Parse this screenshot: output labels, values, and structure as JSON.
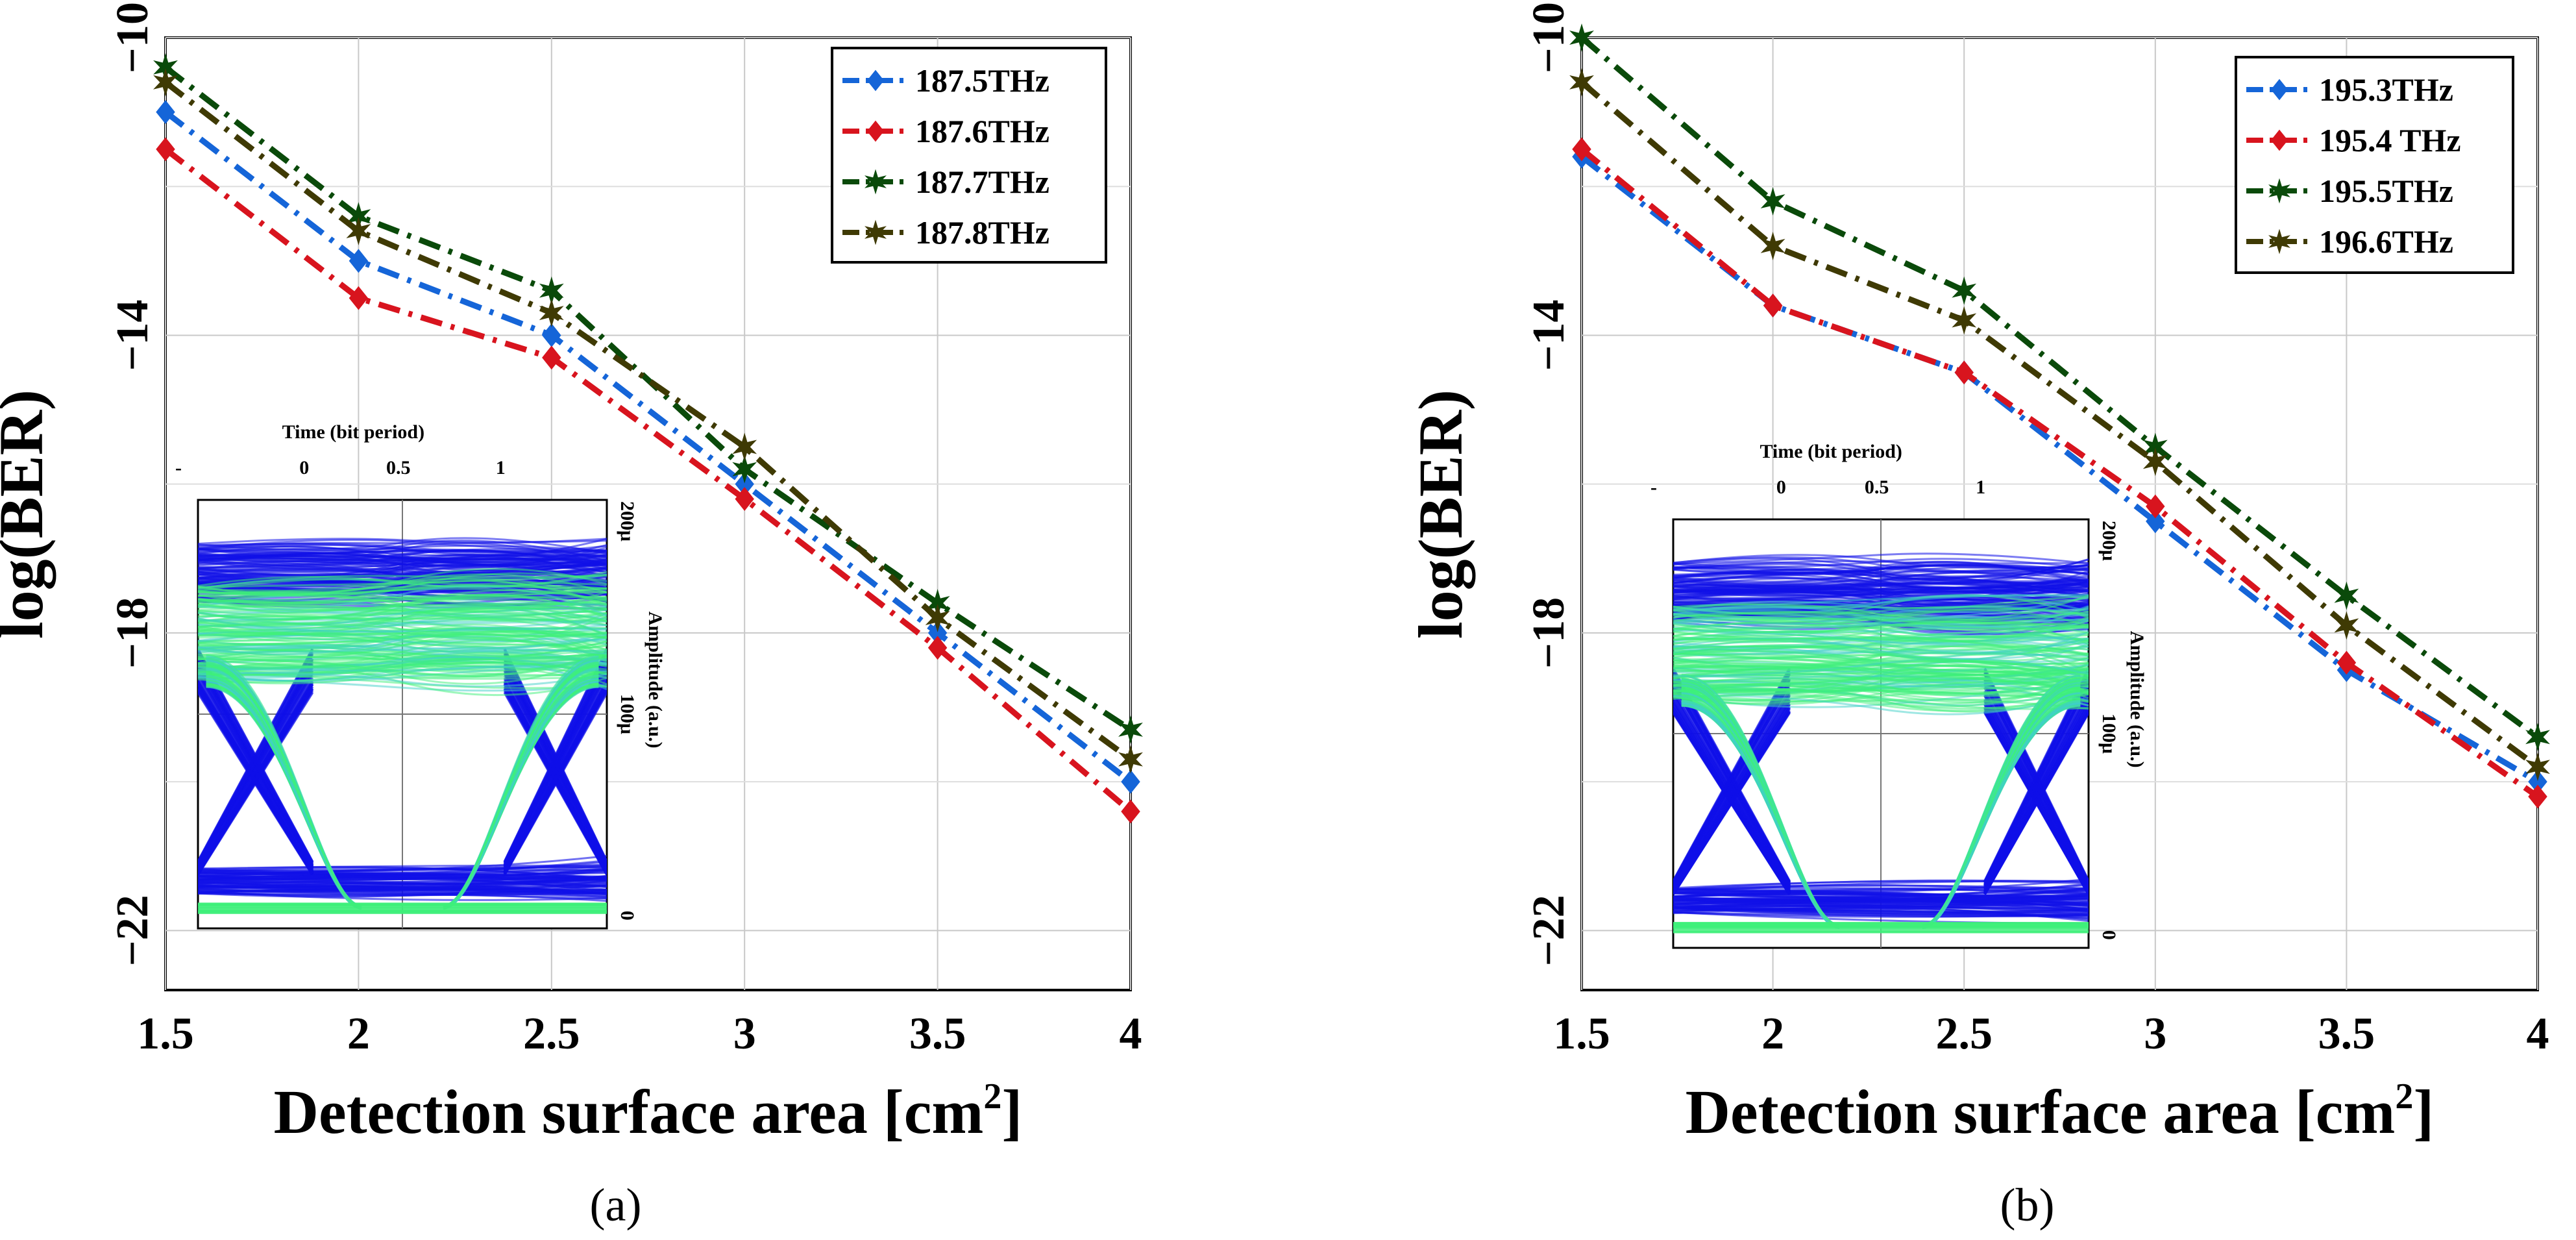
{
  "colors": {
    "blue": "#1565d8",
    "red": "#d8141e",
    "green": "#0a4a0a",
    "olive": "#3f3a04",
    "eye_blue": "#1010e8",
    "eye_green": "#3ef07a",
    "eye_cyan": "#3fd0c8"
  },
  "chart_data": [
    {
      "type": "line",
      "caption": "(a)",
      "title": "",
      "xlabel": "Detection surface area [cm",
      "xlabel_sup": "2",
      "xlabel_end": "]",
      "ylabel": "log(BER)",
      "xlim": [
        1.5,
        4
      ],
      "ylim": [
        -22.8,
        -10
      ],
      "xticks": [
        "1.5",
        "2",
        "2.5",
        "3",
        "3.5",
        "4"
      ],
      "xtick_values": [
        1.5,
        2,
        2.5,
        3,
        3.5,
        4
      ],
      "yticks": [
        "−10",
        "−14",
        "−18",
        "−22"
      ],
      "ytick_values": [
        -10,
        -14,
        -18,
        -22
      ],
      "x": [
        1.5,
        2,
        2.5,
        3,
        3.5,
        4
      ],
      "series": [
        {
          "name": "187.5THz",
          "color": "#1565d8",
          "marker": "diamond",
          "values": [
            -11.0,
            -13.0,
            -14.0,
            -16.0,
            -18.0,
            -20.0
          ]
        },
        {
          "name": "187.6THz",
          "color": "#d8141e",
          "marker": "diamond",
          "values": [
            -11.5,
            -13.5,
            -14.3,
            -16.2,
            -18.2,
            -20.4
          ]
        },
        {
          "name": "187.7THz",
          "color": "#0a4a0a",
          "marker": "star",
          "values": [
            -10.4,
            -12.4,
            -13.4,
            -15.8,
            -17.6,
            -19.3
          ]
        },
        {
          "name": "187.8THz",
          "color": "#3f3a04",
          "marker": "star",
          "values": [
            -10.6,
            -12.6,
            -13.7,
            -15.5,
            -17.8,
            -19.7
          ]
        }
      ],
      "inset": {
        "top_label": "Time (bit period)",
        "top_ticks": [
          "-",
          "0",
          "0.5",
          "1"
        ],
        "right_label": "Amplitude (a.u.)",
        "right_ticks": [
          "200μ",
          "100μ",
          "0"
        ]
      }
    },
    {
      "type": "line",
      "caption": "(b)",
      "title": "",
      "xlabel": "Detection surface area [cm",
      "xlabel_sup": "2",
      "xlabel_end": "]",
      "ylabel": "log(BER)",
      "xlim": [
        1.5,
        4
      ],
      "ylim": [
        -22.8,
        -10
      ],
      "xticks": [
        "1.5",
        "2",
        "2.5",
        "3",
        "3.5",
        "4"
      ],
      "xtick_values": [
        1.5,
        2,
        2.5,
        3,
        3.5,
        4
      ],
      "yticks": [
        "−10",
        "−14",
        "−18",
        "−22"
      ],
      "ytick_values": [
        -10,
        -14,
        -18,
        -22
      ],
      "x": [
        1.5,
        2,
        2.5,
        3,
        3.5,
        4
      ],
      "series": [
        {
          "name": "195.3THz",
          "color": "#1565d8",
          "marker": "diamond",
          "values": [
            -11.6,
            -13.6,
            -14.5,
            -16.5,
            -18.5,
            -20.0
          ]
        },
        {
          "name": "195.4 THz",
          "color": "#d8141e",
          "marker": "diamond",
          "values": [
            -11.5,
            -13.6,
            -14.5,
            -16.3,
            -18.4,
            -20.2
          ]
        },
        {
          "name": "195.5THz",
          "color": "#0a4a0a",
          "marker": "star",
          "values": [
            -10.0,
            -12.2,
            -13.4,
            -15.5,
            -17.5,
            -19.4
          ]
        },
        {
          "name": "196.6THz",
          "color": "#3f3a04",
          "marker": "star",
          "values": [
            -10.6,
            -12.8,
            -13.8,
            -15.7,
            -17.9,
            -19.8
          ]
        }
      ],
      "inset": {
        "top_label": "Time (bit period)",
        "top_ticks": [
          "-",
          "0",
          "0.5",
          "1"
        ],
        "right_label": "Amplitude (a.u.)",
        "right_ticks": [
          "200μ",
          "100μ",
          "0"
        ]
      }
    }
  ]
}
